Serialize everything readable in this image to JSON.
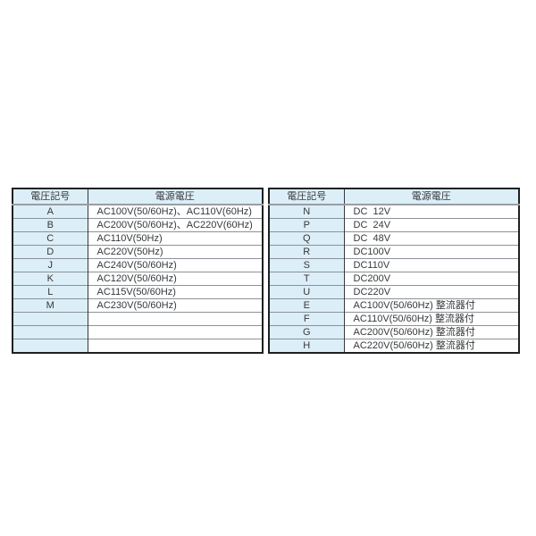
{
  "page": {
    "background": "#ffffff"
  },
  "colors": {
    "cell_fill_blue": "#dceef8",
    "row_line": "#8b9298",
    "header_underline": "#979ea4",
    "outer_border": "#1e2022",
    "text": "#36383a"
  },
  "tables": [
    {
      "name": "voltage-table-left",
      "headers": [
        "電圧記号",
        "電源電圧"
      ],
      "rows": [
        [
          "A",
          "AC100V(50/60Hz)、AC110V(60Hz)"
        ],
        [
          "B",
          "AC200V(50/60Hz)、AC220V(60Hz)"
        ],
        [
          "C",
          "AC110V(50Hz)"
        ],
        [
          "D",
          "AC220V(50Hz)"
        ],
        [
          "J",
          "AC240V(50/60Hz)"
        ],
        [
          "K",
          "AC120V(50/60Hz)"
        ],
        [
          "L",
          "AC115V(50/60Hz)"
        ],
        [
          "M",
          "AC230V(50/60Hz)"
        ],
        [
          "",
          ""
        ],
        [
          "",
          ""
        ],
        [
          "",
          ""
        ]
      ]
    },
    {
      "name": "voltage-table-right",
      "headers": [
        "電圧記号",
        "電源電圧"
      ],
      "rows": [
        [
          "N",
          "DC  12V"
        ],
        [
          "P",
          "DC  24V"
        ],
        [
          "Q",
          "DC  48V"
        ],
        [
          "R",
          "DC100V"
        ],
        [
          "S",
          "DC110V"
        ],
        [
          "T",
          "DC200V"
        ],
        [
          "U",
          "DC220V"
        ],
        [
          "E",
          "AC100V(50/60Hz) 整流器付"
        ],
        [
          "F",
          "AC110V(50/60Hz) 整流器付"
        ],
        [
          "G",
          "AC200V(50/60Hz) 整流器付"
        ],
        [
          "H",
          "AC220V(50/60Hz) 整流器付"
        ]
      ]
    }
  ]
}
